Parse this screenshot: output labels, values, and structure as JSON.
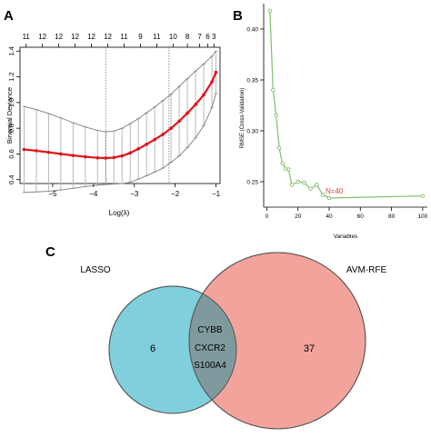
{
  "panels": [
    {
      "letter": "A"
    },
    {
      "letter": "B"
    },
    {
      "letter": "C"
    }
  ],
  "chart_data": [
    {
      "panel": "A",
      "type": "line",
      "xlabel": "Log(λ)",
      "ylabel": "Binomial Deviance",
      "xlim": [
        -5.8,
        -0.9
      ],
      "ylim": [
        0.37,
        1.43
      ],
      "x_ticks": [
        -5,
        -4,
        -3,
        -2,
        -1
      ],
      "y_ticks": [
        0.4,
        0.6,
        0.8,
        1.0,
        1.2,
        1.4
      ],
      "top_axis_labels": [
        {
          "x": -5.65,
          "label": "11"
        },
        {
          "x": -5.25,
          "label": "12"
        },
        {
          "x": -4.85,
          "label": "12"
        },
        {
          "x": -4.45,
          "label": "12"
        },
        {
          "x": -4.05,
          "label": "12"
        },
        {
          "x": -3.65,
          "label": "12"
        },
        {
          "x": -3.25,
          "label": "11"
        },
        {
          "x": -2.85,
          "label": "9"
        },
        {
          "x": -2.45,
          "label": "11"
        },
        {
          "x": -2.05,
          "label": "10"
        },
        {
          "x": -1.7,
          "label": "8"
        },
        {
          "x": -1.4,
          "label": "7"
        },
        {
          "x": -1.2,
          "label": "6"
        },
        {
          "x": -1.05,
          "label": "3"
        }
      ],
      "vlines": [
        -3.7,
        -2.15
      ],
      "x": [
        -5.7,
        -5.4,
        -5.1,
        -4.8,
        -4.5,
        -4.2,
        -3.9,
        -3.7,
        -3.5,
        -3.3,
        -3.1,
        -2.9,
        -2.7,
        -2.5,
        -2.3,
        -2.1,
        -1.9,
        -1.7,
        -1.5,
        -1.3,
        -1.1,
        -1.0
      ],
      "values": [
        0.635,
        0.625,
        0.613,
        0.6,
        0.588,
        0.578,
        0.57,
        0.568,
        0.572,
        0.585,
        0.608,
        0.64,
        0.675,
        0.712,
        0.752,
        0.8,
        0.855,
        0.918,
        0.985,
        1.06,
        1.16,
        1.235
      ],
      "upper": [
        0.97,
        0.945,
        0.915,
        0.88,
        0.843,
        0.81,
        0.783,
        0.773,
        0.778,
        0.8,
        0.835,
        0.875,
        0.92,
        0.965,
        1.015,
        1.065,
        1.125,
        1.185,
        1.245,
        1.3,
        1.36,
        1.4
      ],
      "lower": [
        0.3,
        0.305,
        0.31,
        0.32,
        0.333,
        0.346,
        0.357,
        0.363,
        0.366,
        0.37,
        0.38,
        0.405,
        0.43,
        0.46,
        0.49,
        0.535,
        0.585,
        0.65,
        0.725,
        0.82,
        0.96,
        1.07
      ]
    },
    {
      "panel": "B",
      "type": "line",
      "xlabel": "Variables",
      "ylabel": "RMSE (Cross-Validation)",
      "xlim": [
        -2,
        103
      ],
      "ylim": [
        0.225,
        0.425
      ],
      "x_ticks": [
        0,
        20,
        40,
        60,
        80,
        100
      ],
      "y_ticks": [
        0.25,
        0.3,
        0.35,
        0.4
      ],
      "x": [
        2,
        4,
        6,
        8,
        10,
        12,
        14,
        16,
        20,
        24,
        28,
        32,
        36,
        40,
        100
      ],
      "values": [
        0.418,
        0.34,
        0.315,
        0.283,
        0.268,
        0.263,
        0.262,
        0.247,
        0.25,
        0.249,
        0.243,
        0.247,
        0.237,
        0.234,
        0.236
      ],
      "annotation": {
        "x": 40,
        "y": 0.234,
        "text": "N=40"
      },
      "line_color": "#7fbf6a",
      "annotation_color": "#e8403a"
    }
  ],
  "venn": {
    "sets": [
      {
        "label": "LASSO",
        "only_count": "6",
        "color": "#7fcfdc"
      },
      {
        "label": "AVM-RFE",
        "only_count": "37",
        "color": "#f2a49c"
      }
    ],
    "intersection": [
      "CYBB",
      "CXCR2",
      "S100A4"
    ],
    "intersection_color": "#7f9a9c"
  }
}
